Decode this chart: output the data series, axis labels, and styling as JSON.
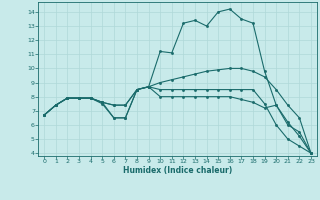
{
  "xlabel": "Humidex (Indice chaleur)",
  "ylabel": "",
  "background_color": "#c8eaea",
  "grid_color": "#afd8d8",
  "line_color": "#1a6b6b",
  "xlim": [
    -0.5,
    23.5
  ],
  "ylim": [
    3.8,
    14.7
  ],
  "xticks": [
    0,
    1,
    2,
    3,
    4,
    5,
    6,
    7,
    8,
    9,
    10,
    11,
    12,
    13,
    14,
    15,
    16,
    17,
    18,
    19,
    20,
    21,
    22,
    23
  ],
  "yticks": [
    4,
    5,
    6,
    7,
    8,
    9,
    10,
    11,
    12,
    13,
    14
  ],
  "lines": [
    {
      "x": [
        0,
        1,
        2,
        3,
        4,
        5,
        6,
        7,
        8,
        9,
        10,
        11,
        12,
        13,
        14,
        15,
        16,
        17,
        18,
        19,
        20,
        21,
        22,
        23
      ],
      "y": [
        6.7,
        7.4,
        7.9,
        7.9,
        7.9,
        7.6,
        6.5,
        6.5,
        8.5,
        8.7,
        11.2,
        11.1,
        13.2,
        13.4,
        13.0,
        14.0,
        14.2,
        13.5,
        13.2,
        9.8,
        7.4,
        6.2,
        5.2,
        4.0
      ]
    },
    {
      "x": [
        0,
        1,
        2,
        3,
        4,
        5,
        6,
        7,
        8,
        9,
        10,
        11,
        12,
        13,
        14,
        15,
        16,
        17,
        18,
        19,
        20,
        21,
        22,
        23
      ],
      "y": [
        6.7,
        7.4,
        7.9,
        7.9,
        7.9,
        7.6,
        7.4,
        7.4,
        8.5,
        8.7,
        9.0,
        9.2,
        9.4,
        9.6,
        9.8,
        9.9,
        10.0,
        10.0,
        9.8,
        9.4,
        8.5,
        7.4,
        6.5,
        4.0
      ]
    },
    {
      "x": [
        0,
        1,
        2,
        3,
        4,
        5,
        6,
        7,
        8,
        9,
        10,
        11,
        12,
        13,
        14,
        15,
        16,
        17,
        18,
        19,
        20,
        21,
        22,
        23
      ],
      "y": [
        6.7,
        7.4,
        7.9,
        7.9,
        7.9,
        7.5,
        6.5,
        6.5,
        8.5,
        8.7,
        8.5,
        8.5,
        8.5,
        8.5,
        8.5,
        8.5,
        8.5,
        8.5,
        8.5,
        7.5,
        6.0,
        5.0,
        4.5,
        4.0
      ]
    },
    {
      "x": [
        0,
        1,
        2,
        3,
        4,
        5,
        6,
        7,
        8,
        9,
        10,
        11,
        12,
        13,
        14,
        15,
        16,
        17,
        18,
        19,
        20,
        21,
        22,
        23
      ],
      "y": [
        6.7,
        7.4,
        7.9,
        7.9,
        7.9,
        7.6,
        7.4,
        7.4,
        8.5,
        8.7,
        8.0,
        8.0,
        8.0,
        8.0,
        8.0,
        8.0,
        8.0,
        7.8,
        7.6,
        7.2,
        7.4,
        6.0,
        5.5,
        4.0
      ]
    }
  ]
}
